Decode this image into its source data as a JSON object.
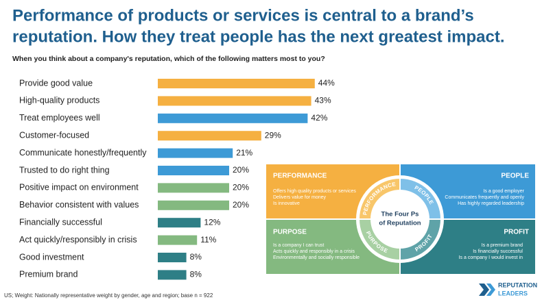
{
  "chart_data": {
    "type": "hbar",
    "title": [
      "Performance of products or services is central to a brand’s",
      "reputation. How they treat people has the next greatest impact."
    ],
    "subtitle": "When you think about a company's reputation, which of the following matters most to you?",
    "categories": [
      "Provide good value",
      "High-quality products",
      "Treat employees well",
      "Customer-focused",
      "Communicate honestly/frequently",
      "Trusted to do right thing",
      "Positive impact on environment",
      "Behavior consistent with values",
      "Financially successful",
      "Act quickly/responsibly in crisis",
      "Good investment",
      "Premium brand"
    ],
    "values": [
      44,
      43,
      42,
      29,
      21,
      20,
      20,
      20,
      12,
      11,
      8,
      8
    ],
    "value_labels": [
      "44%",
      "43%",
      "42%",
      "29%",
      "21%",
      "20%",
      "20%",
      "20%",
      "12%",
      "11%",
      "8%",
      "8%"
    ],
    "colors": [
      "#f5b041",
      "#f5b041",
      "#3d9ad6",
      "#f5b041",
      "#3d9ad6",
      "#3d9ad6",
      "#84b980",
      "#84b980",
      "#2e7f86",
      "#84b980",
      "#2e7f86",
      "#2e7f86"
    ],
    "footnote": "US; Weight: Nationally representative weight by gender, age and region; base n = 922"
  },
  "diagram": {
    "center": [
      "The Four Ps",
      "of Reputation"
    ],
    "ring_labels": [
      "PERFORMANCE",
      "PEOPLE",
      "PURPOSE",
      "PROFIT"
    ],
    "quadrants": [
      {
        "title": "PERFORMANCE",
        "lines": [
          "Offers high quality products or services",
          "Delivers value for money",
          "Is innovative"
        ]
      },
      {
        "title": "PEOPLE",
        "lines": [
          "Is a good employer",
          "Communicates frequently and openly",
          "Has highly regarded leadership"
        ]
      },
      {
        "title": "PURPOSE",
        "lines": [
          "Is a company I can trust",
          "Acts quickly and responsibly in a crisis",
          "Environmentally and socially responsible"
        ]
      },
      {
        "title": "PROFIT",
        "lines": [
          "Is a premium brand",
          "Is financially successful",
          "Is a company I would invest in"
        ]
      }
    ]
  },
  "logo": [
    "REPUTATION",
    "LEADERS"
  ]
}
